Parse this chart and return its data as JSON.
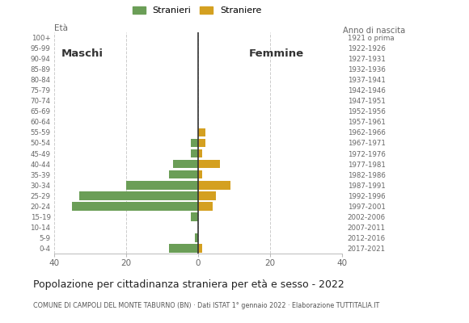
{
  "age_groups": [
    "100+",
    "95-99",
    "90-94",
    "85-89",
    "80-84",
    "75-79",
    "70-74",
    "65-69",
    "60-64",
    "55-59",
    "50-54",
    "45-49",
    "40-44",
    "35-39",
    "30-34",
    "25-29",
    "20-24",
    "15-19",
    "10-14",
    "5-9",
    "0-4"
  ],
  "birth_years": [
    "1921 o prima",
    "1922-1926",
    "1927-1931",
    "1932-1936",
    "1937-1941",
    "1942-1946",
    "1947-1951",
    "1952-1956",
    "1957-1961",
    "1962-1966",
    "1967-1971",
    "1972-1976",
    "1977-1981",
    "1982-1986",
    "1987-1991",
    "1992-1996",
    "1997-2001",
    "2002-2006",
    "2007-2011",
    "2012-2016",
    "2017-2021"
  ],
  "males": [
    0,
    0,
    0,
    0,
    0,
    0,
    0,
    0,
    0,
    0,
    2,
    2,
    7,
    8,
    20,
    33,
    35,
    2,
    0,
    1,
    8
  ],
  "females": [
    0,
    0,
    0,
    0,
    0,
    0,
    0,
    0,
    0,
    2,
    2,
    1,
    6,
    1,
    9,
    5,
    4,
    0,
    0,
    0,
    1
  ],
  "male_color": "#6b9e57",
  "female_color": "#d4a020",
  "title": "Popolazione per cittadinanza straniera per età e sesso - 2022",
  "subtitle": "COMUNE DI CAMPOLI DEL MONTE TABURNO (BN) · Dati ISTAT 1° gennaio 2022 · Elaborazione TUTTITALIA.IT",
  "legend_male": "Stranieri",
  "legend_female": "Straniere",
  "xlim": 40,
  "eta_label": "Età",
  "anno_label": "Anno di nascita",
  "maschi_label": "Maschi",
  "femmine_label": "Femmine",
  "background_color": "#ffffff",
  "grid_color": "#cccccc"
}
